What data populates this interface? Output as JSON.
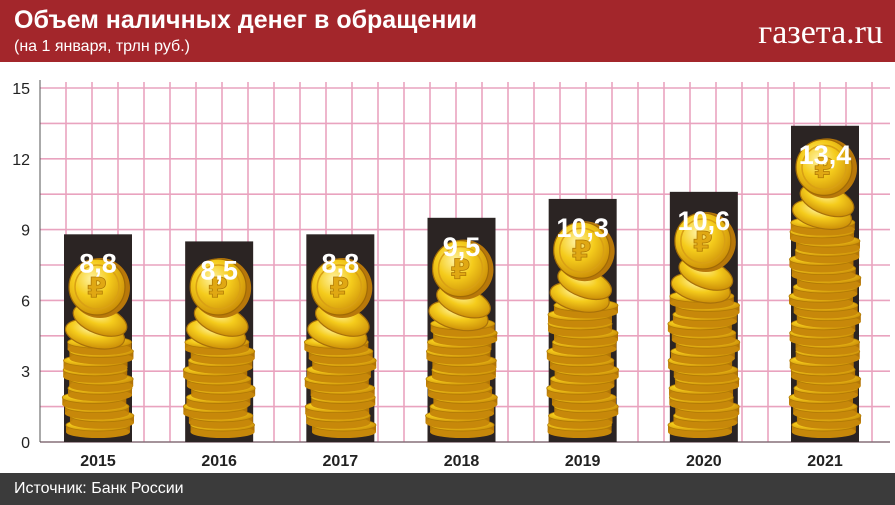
{
  "header": {
    "title": "Объем наличных денег в обращении",
    "subtitle": "(на 1 января, трлн руб.)",
    "brand": "газета.ru"
  },
  "footer": {
    "source": "Источник: Банк России"
  },
  "colors": {
    "header_bg": "#a3262b",
    "footer_bg": "#3b3b3b",
    "grid": "#e9a3bf",
    "bar": "#2b2423",
    "coin": "#f2c418"
  },
  "chart_data": {
    "type": "bar",
    "title": "Объем наличных денег в обращении",
    "subtitle": "(на 1 января, трлн руб.)",
    "categories": [
      "2015",
      "2016",
      "2017",
      "2018",
      "2019",
      "2020",
      "2021"
    ],
    "values": [
      8.8,
      8.5,
      8.8,
      9.5,
      10.3,
      10.6,
      13.4
    ],
    "value_labels": [
      "8,8",
      "8,5",
      "8,8",
      "9,5",
      "10,3",
      "10,6",
      "13,4"
    ],
    "yticks": [
      0,
      3,
      6,
      9,
      12,
      15
    ],
    "ylim": [
      0,
      15
    ],
    "grid": true,
    "xlabel": "",
    "ylabel": ""
  }
}
